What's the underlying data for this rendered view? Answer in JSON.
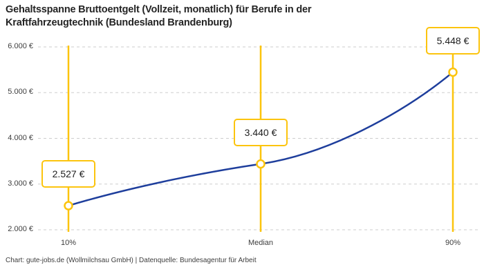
{
  "title": {
    "line1": "Gehaltsspanne Bruttoentgelt (Vollzeit, monatlich) für Berufe in der",
    "line2": "Kraftfahrzeugtechnik (Bundesland Brandenburg)"
  },
  "footer": "Chart: gute-jobs.de (Wollmilchsau GmbH) | Datenquelle: Bundesagentur für Arbeit",
  "chart_data": {
    "type": "line",
    "title": "Gehaltsspanne Bruttoentgelt (Vollzeit, monatlich) für Berufe in der Kraftfahrzeugtechnik (Bundesland Brandenburg)",
    "categories": [
      "10%",
      "Median",
      "90%"
    ],
    "values": [
      2527,
      3440,
      5448
    ],
    "value_labels": [
      "2.527 €",
      "3.440 €",
      "5.448 €"
    ],
    "ylim": [
      2000,
      6000
    ],
    "y_tick_values": [
      2000,
      3000,
      4000,
      5000,
      6000
    ],
    "y_tick_labels": [
      "2.000 €",
      "3.000 €",
      "4.000 €",
      "5.000 €",
      "6.000 €"
    ],
    "xlabel": "",
    "ylabel": "",
    "grid": "horizontal-dashed",
    "legend": "none",
    "colors": {
      "line": "#1e3e9c",
      "accent": "#fcc40d",
      "grid": "#cdcdcd",
      "text": "#3d3d3d",
      "title": "#242424"
    }
  }
}
